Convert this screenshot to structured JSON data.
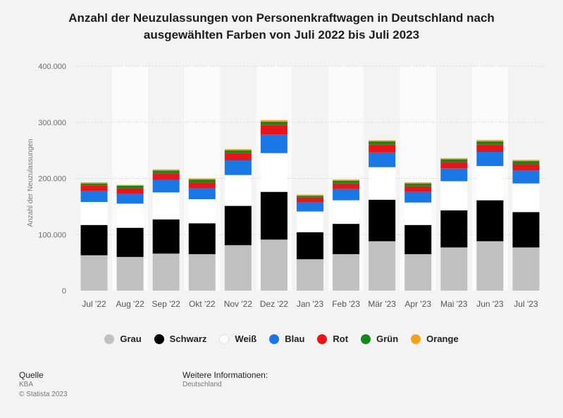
{
  "title_line1": "Anzahl der Neuzulassungen von Personenkraftwagen in Deutschland nach",
  "title_line2": "ausgewählten Farben von Juli 2022 bis Juli 2023",
  "chart_data": {
    "type": "bar",
    "stacked": true,
    "title": "Anzahl der Neuzulassungen von Personenkraftwagen in Deutschland nach ausgewählten Farben von Juli 2022 bis Juli 2023",
    "xlabel": "",
    "ylabel": "Anzahl der Neuzulassungen",
    "ylim": [
      0,
      400000
    ],
    "yticks": [
      0,
      100000,
      200000,
      300000,
      400000
    ],
    "ytick_labels": [
      "0",
      "100.000",
      "200.000",
      "300.000",
      "400.000"
    ],
    "categories": [
      "Jul '22",
      "Aug '22",
      "Sep '22",
      "Okt '22",
      "Nov '22",
      "Dez '22",
      "Jan '23",
      "Feb '23",
      "Mär '23",
      "Apr '23",
      "Mai '23",
      "Jun '23",
      "Jul '23"
    ],
    "series": [
      {
        "name": "Grau",
        "color": "#c0c0c0",
        "values": [
          63000,
          60000,
          66000,
          65000,
          81000,
          91000,
          56000,
          65000,
          88000,
          65000,
          77000,
          88000,
          77000
        ]
      },
      {
        "name": "Schwarz",
        "color": "#000000",
        "values": [
          54000,
          52000,
          61000,
          55000,
          70000,
          85000,
          48000,
          54000,
          74000,
          52000,
          66000,
          73000,
          63000
        ]
      },
      {
        "name": "Weiß",
        "color": "#ffffff",
        "values": [
          41000,
          43000,
          48000,
          43000,
          55000,
          69000,
          37000,
          42000,
          58000,
          40000,
          52000,
          61000,
          51000
        ]
      },
      {
        "name": "Blau",
        "color": "#1a78e6",
        "values": [
          19000,
          17000,
          22000,
          19000,
          26000,
          33000,
          17000,
          20000,
          26000,
          19000,
          23000,
          25000,
          23000
        ]
      },
      {
        "name": "Rot",
        "color": "#e8161b",
        "values": [
          10000,
          10000,
          12000,
          11000,
          13000,
          17000,
          8000,
          10000,
          14000,
          10000,
          11000,
          13000,
          11000
        ]
      },
      {
        "name": "Grün",
        "color": "#128a1a",
        "values": [
          4000,
          5000,
          5000,
          5000,
          5000,
          6000,
          3000,
          5000,
          6000,
          5000,
          5000,
          6000,
          6000
        ]
      },
      {
        "name": "Orange",
        "color": "#f7a21b",
        "values": [
          2000,
          1500,
          2000,
          2000,
          2000,
          3000,
          2000,
          2000,
          2000,
          2000,
          2000,
          2500,
          2000
        ]
      }
    ],
    "legend_position": "bottom",
    "grid": true
  },
  "legend_items": [
    {
      "label": "Grau",
      "color": "#c0c0c0"
    },
    {
      "label": "Schwarz",
      "color": "#000000"
    },
    {
      "label": "Weiß",
      "color": "#ffffff"
    },
    {
      "label": "Blau",
      "color": "#1a78e6"
    },
    {
      "label": "Rot",
      "color": "#e8161b"
    },
    {
      "label": "Grün",
      "color": "#128a1a"
    },
    {
      "label": "Orange",
      "color": "#f7a21b"
    }
  ],
  "footer": {
    "source_heading": "Quelle",
    "source_line": "KBA",
    "copyright": "© Statista 2023",
    "info_heading": "Weitere Informationen:",
    "info_line": "Deutschland"
  }
}
